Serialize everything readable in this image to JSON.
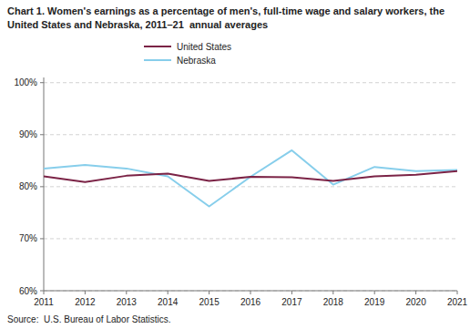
{
  "chart_data": {
    "type": "line",
    "title": "Chart 1. Women's earnings as a percentage of men's, full-time wage and salary workers, the United States and Nebraska, 2011–21  annual averages",
    "x": [
      2011,
      2012,
      2013,
      2014,
      2015,
      2016,
      2017,
      2018,
      2019,
      2020,
      2021
    ],
    "series": [
      {
        "name": "United States",
        "color": "#7B2346",
        "values": [
          82.0,
          80.9,
          82.1,
          82.5,
          81.1,
          81.9,
          81.8,
          81.1,
          82.0,
          82.3,
          83.0
        ]
      },
      {
        "name": "Nebraska",
        "color": "#87CEEB",
        "values": [
          83.5,
          84.2,
          83.5,
          82.0,
          76.2,
          81.9,
          87.0,
          80.4,
          83.8,
          83.0,
          83.2
        ]
      }
    ],
    "xlim": [
      2011,
      2021
    ],
    "xticks": [
      2011,
      2012,
      2013,
      2014,
      2015,
      2016,
      2017,
      2018,
      2019,
      2020,
      2021
    ],
    "ylim": [
      60,
      101
    ],
    "yticks": [
      {
        "value": 60,
        "label": "60%"
      },
      {
        "value": 70,
        "label": "70%"
      },
      {
        "value": 80,
        "label": "80%"
      },
      {
        "value": 90,
        "label": "90%"
      },
      {
        "value": 100,
        "label": "100%"
      }
    ],
    "grid": true,
    "legend": "top",
    "source": "Source:  U.S. Bureau of Labor Statistics."
  }
}
